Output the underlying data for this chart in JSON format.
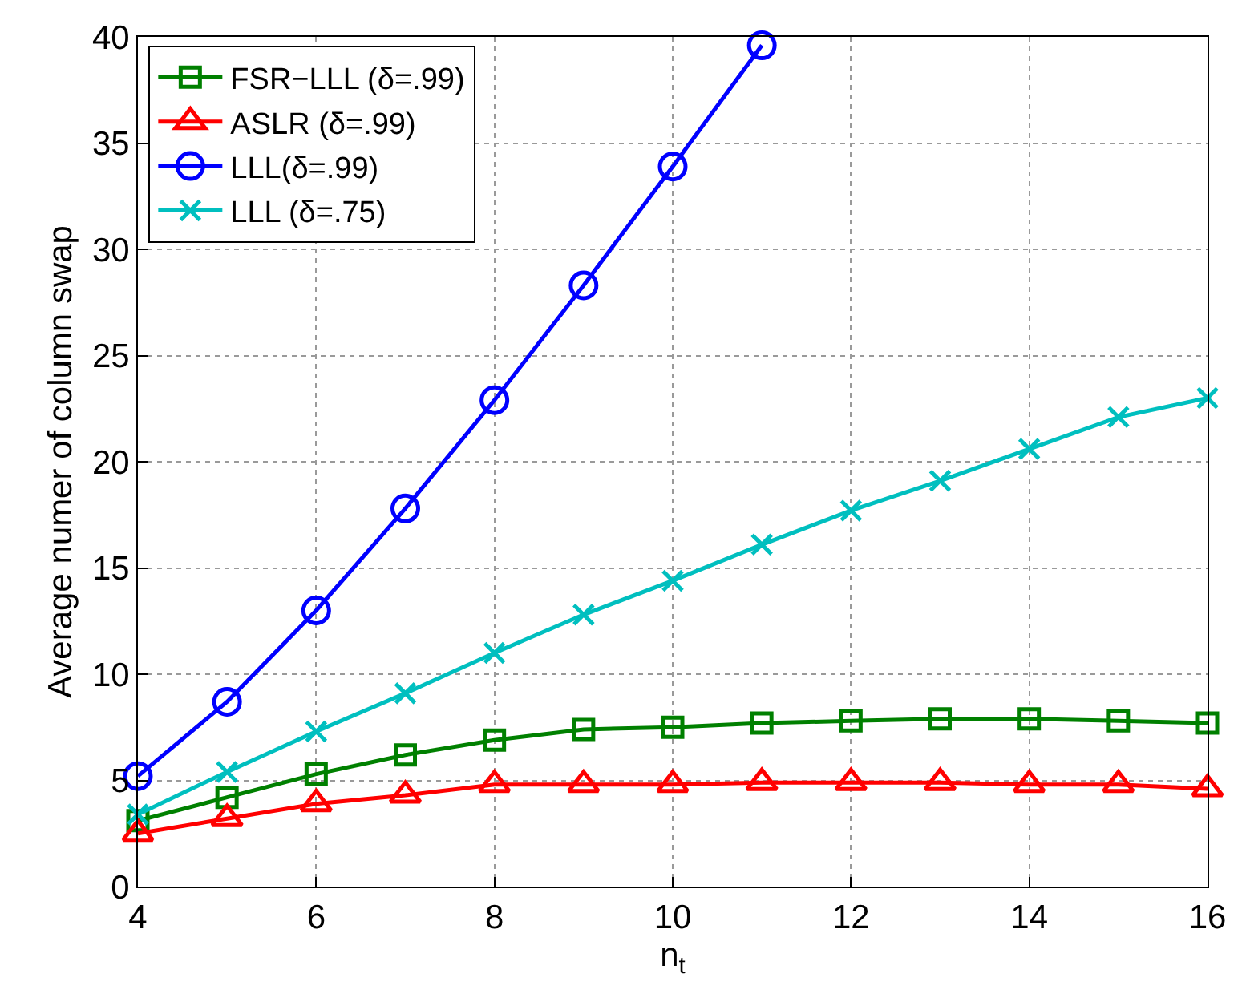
{
  "chart_data": {
    "type": "line",
    "xlabel": "n$_{t}$",
    "ylabel": "Average numer of column swap",
    "x": [
      4,
      5,
      6,
      7,
      8,
      9,
      10,
      11,
      12,
      13,
      14,
      15,
      16
    ],
    "xlim": [
      4,
      16
    ],
    "xticks": [
      4,
      6,
      8,
      10,
      12,
      14,
      16
    ],
    "ylim": [
      0,
      40
    ],
    "yticks": [
      0,
      5,
      10,
      15,
      20,
      25,
      30,
      35,
      40
    ],
    "grid": true,
    "legend": "top left",
    "line_style": "solid",
    "series": [
      {
        "name": "FSR−LLL (δ=.99)",
        "color": "#008000",
        "marker": "square",
        "values": [
          3.1,
          4.2,
          5.3,
          6.2,
          6.9,
          7.4,
          7.5,
          7.7,
          7.8,
          7.9,
          7.9,
          7.8,
          7.7
        ]
      },
      {
        "name": "ASLR (δ=.99)",
        "color": "#ff0000",
        "marker": "triangle",
        "values": [
          2.5,
          3.2,
          3.9,
          4.3,
          4.8,
          4.8,
          4.8,
          4.9,
          4.9,
          4.9,
          4.8,
          4.8,
          4.6
        ]
      },
      {
        "name": "LLL(δ=.99)",
        "color": "#0000ff",
        "marker": "circle",
        "x": [
          4,
          5,
          6,
          7,
          8,
          9,
          10,
          11
        ],
        "values": [
          5.2,
          8.7,
          13.0,
          17.8,
          22.9,
          28.3,
          33.9,
          39.6
        ]
      },
      {
        "name": "LLL (δ=.75)",
        "color": "#00bfbf",
        "marker": "cross",
        "values": [
          3.4,
          5.4,
          7.3,
          9.1,
          11.0,
          12.8,
          14.4,
          16.1,
          17.7,
          19.1,
          20.6,
          22.1,
          23.0
        ]
      }
    ]
  }
}
